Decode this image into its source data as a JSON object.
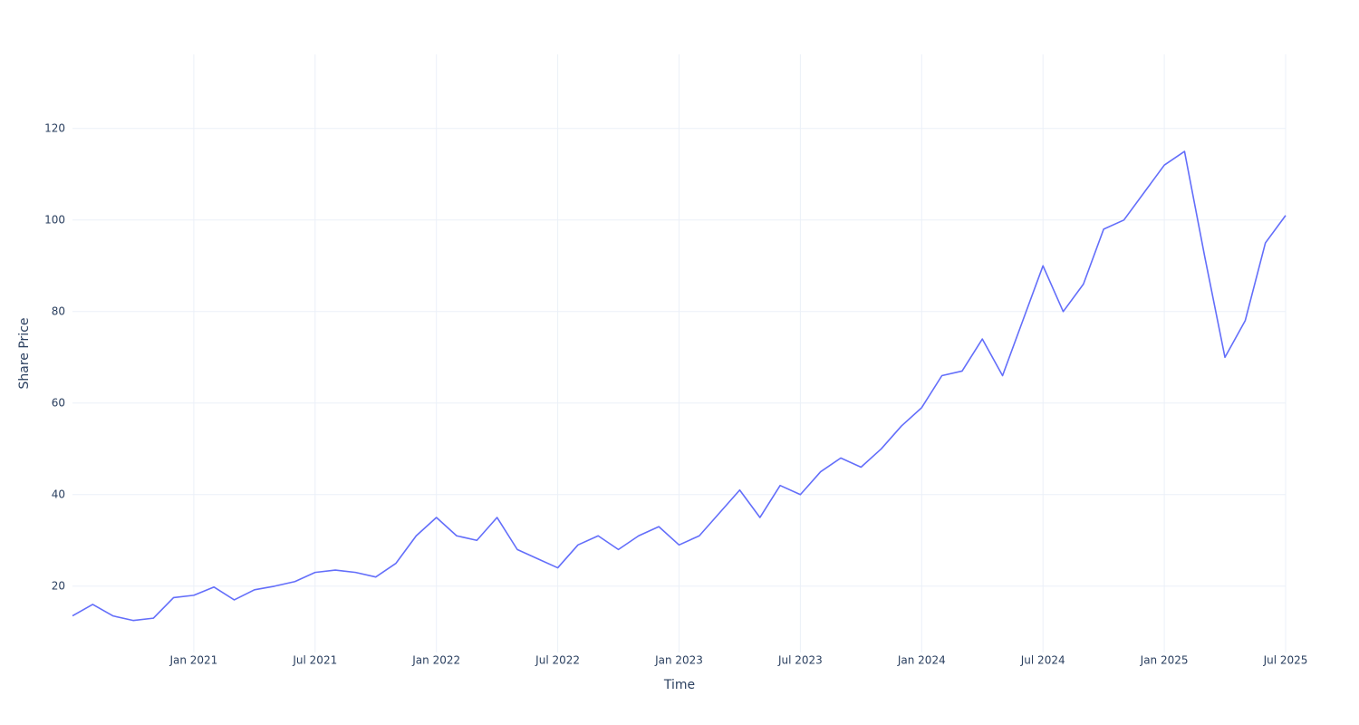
{
  "chart_data": {
    "type": "line",
    "x_label": "Time",
    "y_label": "Share Price",
    "x": [
      "2020-07",
      "2020-08",
      "2020-09",
      "2020-10",
      "2020-11",
      "2020-12",
      "2021-01",
      "2021-02",
      "2021-03",
      "2021-04",
      "2021-05",
      "2021-06",
      "2021-07",
      "2021-08",
      "2021-09",
      "2021-10",
      "2021-11",
      "2021-12",
      "2022-01",
      "2022-02",
      "2022-03",
      "2022-04",
      "2022-05",
      "2022-06",
      "2022-07",
      "2022-08",
      "2022-09",
      "2022-10",
      "2022-11",
      "2022-12",
      "2023-01",
      "2023-02",
      "2023-03",
      "2023-04",
      "2023-05",
      "2023-06",
      "2023-07",
      "2023-08",
      "2023-09",
      "2023-10",
      "2023-11",
      "2023-12",
      "2024-01",
      "2024-02",
      "2024-03",
      "2024-04",
      "2024-05",
      "2024-06",
      "2024-07",
      "2024-08",
      "2024-09",
      "2024-10",
      "2024-11",
      "2024-12",
      "2025-01",
      "2025-02",
      "2025-03",
      "2025-04",
      "2025-05",
      "2025-06",
      "2025-07"
    ],
    "series": [
      {
        "name": "Share Price",
        "color": "#636efa",
        "values": [
          13.5,
          16,
          13.5,
          12.5,
          13,
          17.5,
          18,
          19.8,
          17,
          19.2,
          20,
          21,
          23,
          23.5,
          23,
          22,
          25,
          31,
          35,
          31,
          30,
          35,
          28,
          26,
          24,
          29,
          31,
          28,
          31,
          33,
          29,
          31,
          36,
          41,
          35,
          42,
          40,
          45,
          48,
          46,
          50,
          55,
          59,
          66,
          67,
          74,
          66,
          78,
          90,
          80,
          86,
          98,
          100,
          106,
          112,
          115,
          92,
          70,
          78,
          95,
          101
        ]
      }
    ],
    "xlim": [
      "2020-07",
      "2025-07"
    ],
    "xticks": [
      {
        "value": "2021-01",
        "label": "Jan 2021"
      },
      {
        "value": "2021-07",
        "label": "Jul 2021"
      },
      {
        "value": "2022-01",
        "label": "Jan 2022"
      },
      {
        "value": "2022-07",
        "label": "Jul 2022"
      },
      {
        "value": "2023-01",
        "label": "Jan 2023"
      },
      {
        "value": "2023-07",
        "label": "Jul 2023"
      },
      {
        "value": "2024-01",
        "label": "Jan 2024"
      },
      {
        "value": "2024-07",
        "label": "Jul 2024"
      },
      {
        "value": "2025-01",
        "label": "Jan 2025"
      },
      {
        "value": "2025-07",
        "label": "Jul 2025"
      }
    ],
    "ylim": [
      5.5,
      136.2
    ],
    "yticks": [
      20,
      40,
      60,
      80,
      100,
      120
    ],
    "grid": true
  }
}
